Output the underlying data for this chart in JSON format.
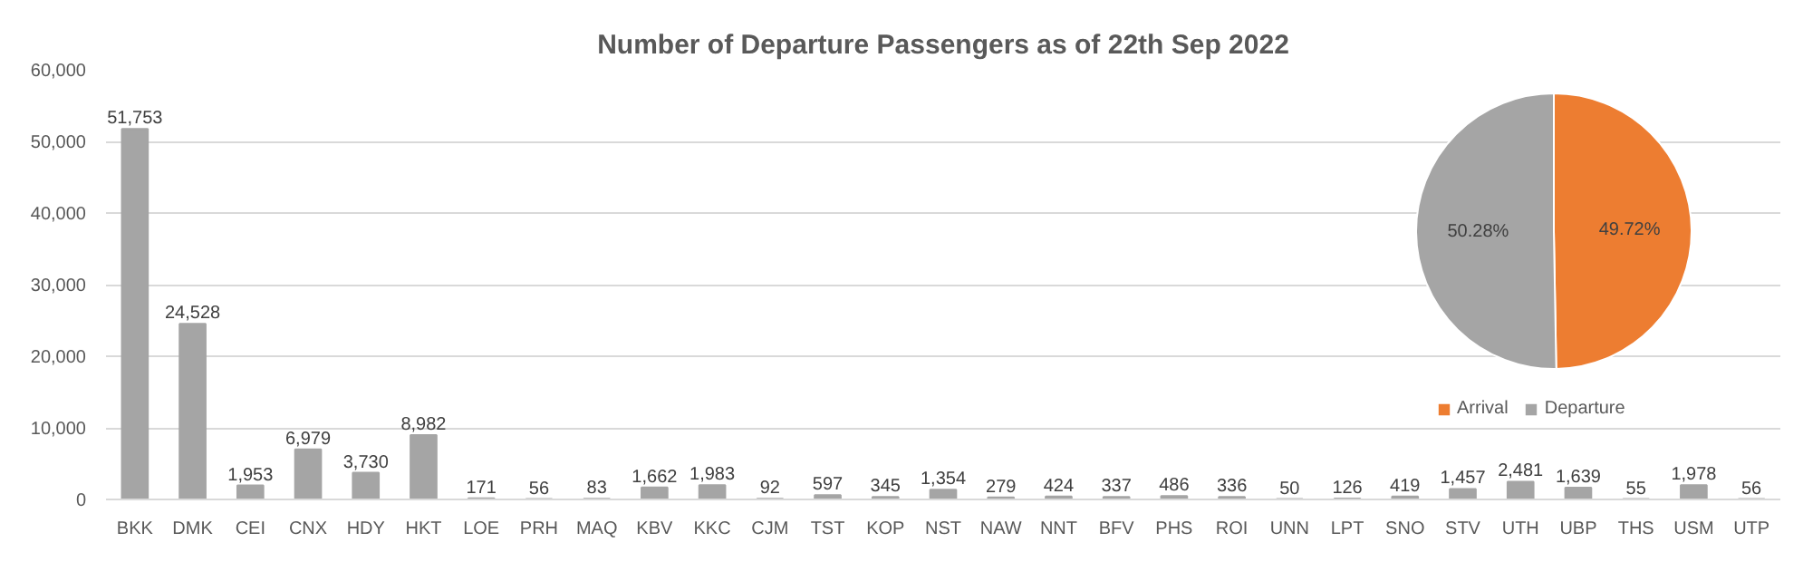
{
  "chart_data": [
    {
      "type": "bar",
      "title": "Number of Departure Passengers as of 22th Sep 2022",
      "categories": [
        "BKK",
        "DMK",
        "CEI",
        "CNX",
        "HDY",
        "HKT",
        "LOE",
        "PRH",
        "MAQ",
        "KBV",
        "KKC",
        "CJM",
        "TST",
        "KOP",
        "NST",
        "NAW",
        "NNT",
        "BFV",
        "PHS",
        "ROI",
        "UNN",
        "LPT",
        "SNO",
        "STV",
        "UTH",
        "UBP",
        "THS",
        "USM",
        "UTP"
      ],
      "values": [
        51753,
        24528,
        1953,
        6979,
        3730,
        8982,
        171,
        56,
        83,
        1662,
        1983,
        92,
        597,
        345,
        1354,
        279,
        424,
        337,
        486,
        336,
        50,
        126,
        419,
        1457,
        2481,
        1639,
        55,
        1978,
        56
      ],
      "value_labels": [
        "51,753",
        "24,528",
        "1,953",
        "6,979",
        "3,730",
        "8,982",
        "171",
        "56",
        "83",
        "1,662",
        "1,983",
        "92",
        "597",
        "345",
        "1,354",
        "279",
        "424",
        "337",
        "486",
        "336",
        "50",
        "126",
        "419",
        "1,457",
        "2,481",
        "1,639",
        "55",
        "1,978",
        "56"
      ],
      "color": "#a5a5a5",
      "ylim": [
        0,
        60000
      ],
      "yticks": [
        {
          "value": 0,
          "label": "0"
        },
        {
          "value": 10000,
          "label": "10,000"
        },
        {
          "value": 20000,
          "label": "20,000"
        },
        {
          "value": 30000,
          "label": "30,000"
        },
        {
          "value": 40000,
          "label": "40,000"
        },
        {
          "value": 50000,
          "label": "50,000"
        },
        {
          "value": 60000,
          "label": "60,000"
        }
      ],
      "grid": "y"
    },
    {
      "type": "pie",
      "categories": [
        "Arrival",
        "Departure"
      ],
      "values": [
        49.72,
        50.28
      ],
      "colors": [
        "#ed7d31",
        "#a5a5a5"
      ],
      "value_labels": [
        "49.72%",
        "50.28%"
      ],
      "legend": "bottom"
    }
  ]
}
